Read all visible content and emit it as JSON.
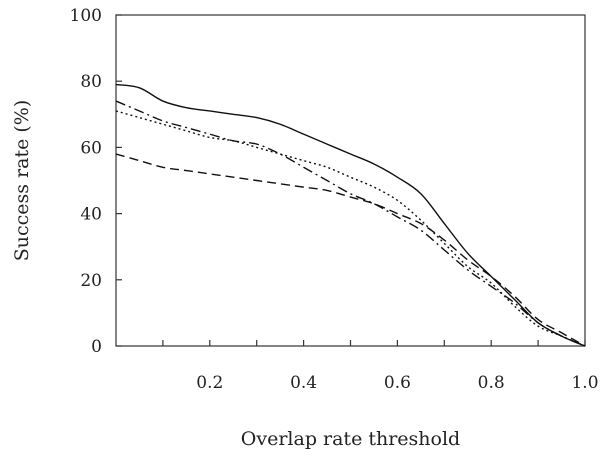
{
  "chart_data": {
    "type": "line",
    "title": "",
    "xlabel": "Overlap rate threshold",
    "ylabel": "Success rate (%)",
    "xlim": [
      0,
      1.0
    ],
    "ylim": [
      0,
      100
    ],
    "grid": false,
    "legend": "none",
    "x_ticks": [
      0.2,
      0.4,
      0.6,
      0.8,
      1.0
    ],
    "x_tick_labels": [
      "0.2",
      "0.4",
      "0.6",
      "0.8",
      "1.0"
    ],
    "y_ticks": [
      0,
      20,
      40,
      60,
      80,
      100
    ],
    "y_tick_labels": [
      "0",
      "20",
      "40",
      "60",
      "80",
      "100"
    ],
    "x": [
      0,
      0.05,
      0.1,
      0.15,
      0.2,
      0.25,
      0.3,
      0.35,
      0.4,
      0.45,
      0.5,
      0.55,
      0.6,
      0.65,
      0.7,
      0.75,
      0.8,
      0.85,
      0.9,
      0.95,
      1.0
    ],
    "series": [
      {
        "style": "solid",
        "values": [
          79,
          78,
          74,
          72,
          71,
          70,
          69,
          67,
          64,
          61,
          58,
          55,
          51,
          46,
          37,
          28,
          21,
          14,
          7,
          3,
          0
        ]
      },
      {
        "style": "dashdot",
        "values": [
          74,
          71,
          68,
          66,
          64,
          62,
          61,
          58,
          54,
          50,
          46,
          43,
          39,
          35,
          29,
          23,
          18,
          13,
          7,
          3,
          0
        ]
      },
      {
        "style": "dotted",
        "values": [
          71,
          69,
          67,
          65,
          63,
          62,
          60,
          58,
          56,
          54,
          51,
          48,
          44,
          38,
          31,
          24,
          19,
          12,
          6,
          3,
          0
        ]
      },
      {
        "style": "dashed",
        "values": [
          58,
          56,
          54,
          53,
          52,
          51,
          50,
          49,
          48,
          47,
          45,
          43,
          40,
          37,
          32,
          26,
          21,
          15,
          8,
          4,
          0
        ]
      }
    ]
  }
}
